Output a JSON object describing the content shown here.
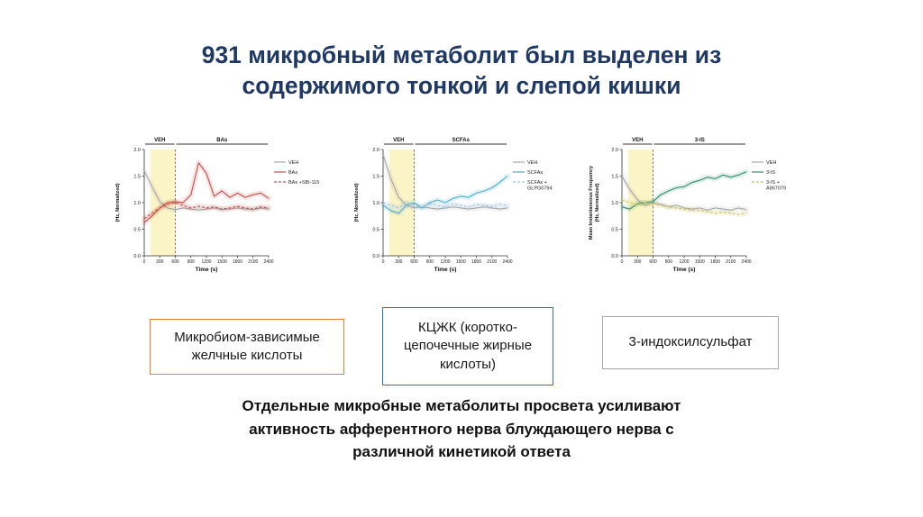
{
  "slide": {
    "title": "931 микробный метаболит был выделен из содержимого тонкой и слепой кишки",
    "conclusion": "Отдельные микробные метаболиты просвета усиливают активность афферентного нерва блуждающего нерва с различной кинетикой ответа"
  },
  "boxes": {
    "bile_acids": "Микробиом-зависимые желчные кислоты",
    "scfa": "КЦЖК (коротко-цепочечные жирные кислоты)",
    "indoxyl": "3-индоксилсульфат"
  },
  "colors": {
    "title": "#1F3864",
    "box_bile_acids_border": "#ED7D31",
    "box_scfa_border": "#2E74B5",
    "box_indoxyl_border": "#A6A6A6",
    "veh_gray": "#A6A6A6",
    "bas_red": "#C0504D",
    "scfa_blue": "#4BACC6",
    "scfa_light_blue": "#9DC3E6",
    "is_green": "#2E8B6A",
    "is_olive": "#CCC45A",
    "stim_band_yellow": "#FBF4C6"
  },
  "chart_data": [
    {
      "type": "line",
      "panel": "BAs",
      "periods": [
        {
          "label": "VEH",
          "from": 0,
          "to": 600
        },
        {
          "label": "BAs",
          "from": 600,
          "to": 2400
        }
      ],
      "xlabel": "Time (s)",
      "ylabel_lines": [
        "(Hz, Normalized)"
      ],
      "xlim": [
        0,
        2400
      ],
      "ylim": [
        0,
        2
      ],
      "xticks": [
        0,
        300,
        600,
        900,
        1200,
        1500,
        1800,
        2100,
        2400
      ],
      "yticks": [
        0,
        0.5,
        1,
        1.5,
        2
      ],
      "stim_band": {
        "from": 120,
        "to": 600,
        "color": "#FBF4C6"
      },
      "dashed_x": 600,
      "x": [
        0,
        150,
        300,
        450,
        600,
        750,
        900,
        1050,
        1200,
        1350,
        1500,
        1650,
        1800,
        1950,
        2100,
        2250,
        2400
      ],
      "series": [
        {
          "label_lines": [
            "VEH"
          ],
          "color": "#A6A6A6",
          "dash": false,
          "values": [
            1.6,
            1.3,
            1.02,
            0.9,
            0.87,
            0.9,
            0.88,
            0.86,
            0.88,
            0.9,
            0.87,
            0.88,
            0.9,
            0.88,
            0.87,
            0.9,
            0.88
          ]
        },
        {
          "label_lines": [
            "BAs"
          ],
          "color": "#C0504D",
          "dash": false,
          "values": [
            0.62,
            0.75,
            0.9,
            1.0,
            1.02,
            1.0,
            1.15,
            1.75,
            1.55,
            1.12,
            1.22,
            1.1,
            1.18,
            1.1,
            1.15,
            1.18,
            1.08
          ]
        },
        {
          "label_lines": [
            "BAs +SBI-115"
          ],
          "color": "#C0504D",
          "dash": true,
          "values": [
            0.7,
            0.8,
            0.9,
            0.97,
            1.0,
            0.95,
            0.9,
            0.93,
            0.9,
            0.92,
            0.88,
            0.9,
            0.93,
            0.9,
            0.88,
            0.92,
            0.9
          ]
        }
      ]
    },
    {
      "type": "line",
      "panel": "SCFAs",
      "periods": [
        {
          "label": "VEH",
          "from": 0,
          "to": 600
        },
        {
          "label": "SCFAs",
          "from": 600,
          "to": 2400
        }
      ],
      "xlabel": "Time (s)",
      "ylabel_lines": [
        "(Hz, Normalized)"
      ],
      "xlim": [
        0,
        2400
      ],
      "ylim": [
        0,
        2
      ],
      "xticks": [
        0,
        300,
        600,
        900,
        1200,
        1500,
        1800,
        2100,
        2400
      ],
      "yticks": [
        0,
        0.5,
        1,
        1.5,
        2
      ],
      "stim_band": {
        "from": 120,
        "to": 600,
        "color": "#FBF4C6"
      },
      "dashed_x": 600,
      "x": [
        0,
        150,
        300,
        450,
        600,
        750,
        900,
        1050,
        1200,
        1350,
        1500,
        1650,
        1800,
        1950,
        2100,
        2250,
        2400
      ],
      "series": [
        {
          "label_lines": [
            "VEH"
          ],
          "color": "#A6A6A6",
          "dash": false,
          "values": [
            1.9,
            1.45,
            1.1,
            0.95,
            0.9,
            0.92,
            0.9,
            0.88,
            0.9,
            0.92,
            0.9,
            0.88,
            0.9,
            0.92,
            0.9,
            0.88,
            0.9
          ]
        },
        {
          "label_lines": [
            "SCFAs"
          ],
          "color": "#4BACC6",
          "dash": false,
          "values": [
            0.95,
            0.85,
            0.8,
            0.95,
            1.0,
            0.9,
            1.0,
            1.05,
            1.0,
            1.08,
            1.12,
            1.1,
            1.18,
            1.22,
            1.28,
            1.38,
            1.5
          ]
        },
        {
          "label_lines": [
            "SCFAs +",
            "GLPG0794"
          ],
          "color": "#9DC3E6",
          "dash": true,
          "values": [
            1.0,
            0.95,
            0.9,
            1.0,
            0.95,
            0.92,
            0.98,
            0.95,
            0.92,
            0.98,
            0.95,
            0.92,
            0.97,
            0.95,
            0.93,
            0.97,
            0.95
          ]
        }
      ]
    },
    {
      "type": "line",
      "panel": "3-IS",
      "periods": [
        {
          "label": "VEH",
          "from": 0,
          "to": 600
        },
        {
          "label": "3-IS",
          "from": 600,
          "to": 2400
        }
      ],
      "xlabel": "Time (s)",
      "ylabel_lines": [
        "Mean Instantaneous Frequency",
        "(Hz, Normalized)"
      ],
      "xlim": [
        0,
        2400
      ],
      "ylim": [
        0,
        2
      ],
      "xticks": [
        0,
        300,
        600,
        900,
        1200,
        1500,
        1800,
        2100,
        2400
      ],
      "yticks": [
        0,
        0.5,
        1,
        1.5,
        2
      ],
      "stim_band": {
        "from": 120,
        "to": 600,
        "color": "#FBF4C6"
      },
      "dashed_x": 600,
      "x": [
        0,
        150,
        300,
        450,
        600,
        750,
        900,
        1050,
        1200,
        1350,
        1500,
        1650,
        1800,
        1950,
        2100,
        2250,
        2400
      ],
      "series": [
        {
          "label_lines": [
            "VEH"
          ],
          "color": "#A6A6A6",
          "dash": false,
          "values": [
            1.5,
            1.25,
            1.05,
            0.95,
            1.0,
            0.97,
            0.92,
            0.95,
            0.9,
            0.88,
            0.9,
            0.86,
            0.9,
            0.88,
            0.86,
            0.9,
            0.87
          ]
        },
        {
          "label_lines": [
            "3-IS"
          ],
          "color": "#2E8B6A",
          "dash": false,
          "values": [
            0.92,
            0.88,
            0.98,
            1.0,
            1.02,
            1.15,
            1.22,
            1.28,
            1.3,
            1.38,
            1.42,
            1.48,
            1.45,
            1.52,
            1.48,
            1.52,
            1.58
          ]
        },
        {
          "label_lines": [
            "3-IS +",
            "A967079"
          ],
          "color": "#CCC45A",
          "dash": true,
          "values": [
            1.05,
            1.0,
            0.96,
            1.0,
            0.97,
            0.95,
            0.92,
            0.9,
            0.88,
            0.86,
            0.85,
            0.83,
            0.8,
            0.82,
            0.8,
            0.78,
            0.8
          ]
        }
      ]
    }
  ]
}
